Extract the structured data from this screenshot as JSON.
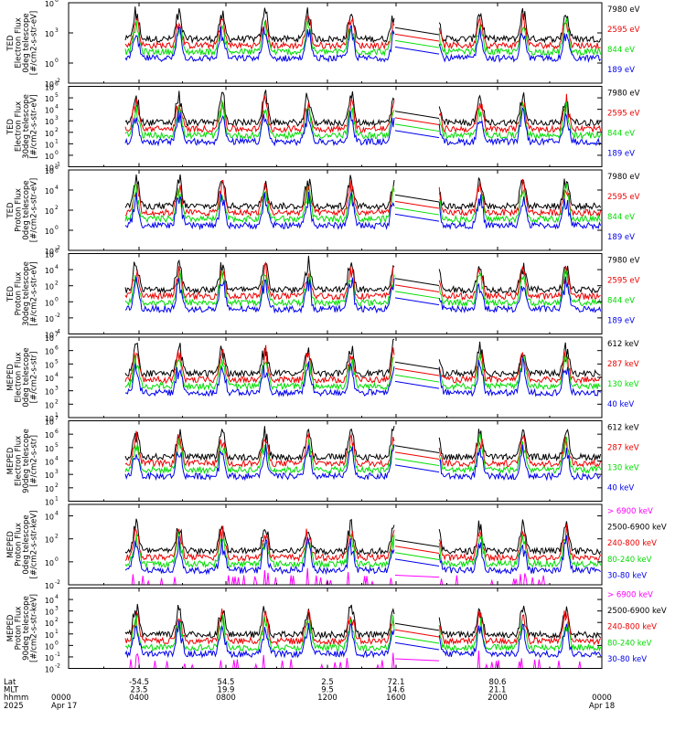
{
  "colors": {
    "black": "#000000",
    "red": "#ee0000",
    "green": "#00dd00",
    "blue": "#0000ee",
    "magenta": "#ff00ff"
  },
  "xaxis": {
    "rows": [
      {
        "label": "Lat",
        "ticks": [
          "",
          "-54.5",
          "54.5",
          "2.5",
          "72.1",
          "80.6",
          ""
        ]
      },
      {
        "label": "MLT",
        "ticks": [
          "",
          "23.5",
          "19.9",
          "9.5",
          "14.6",
          "21.1",
          ""
        ]
      },
      {
        "label": "hhmm",
        "ticks": [
          "0000",
          "0400",
          "0800",
          "1200",
          "1600",
          "2000",
          "0000"
        ]
      },
      {
        "label": "2025",
        "ticks": [
          "Apr 17",
          "",
          "",
          "",
          "",
          "",
          "Apr 18"
        ]
      }
    ]
  },
  "chart_data": [
    {
      "type": "line",
      "ylabel_lines": [
        "TED",
        "Electron Flux",
        "0deg telescope",
        "[#/cm2-s-str-eV]"
      ],
      "ylog_range": [
        -2,
        6
      ],
      "yticks_exp": [
        -2,
        0,
        3,
        6
      ],
      "ytick_labels": [
        "10",
        "10",
        "10",
        "10"
      ],
      "ytick_sup": [
        "-2",
        "0",
        "3",
        "6"
      ],
      "series": [
        {
          "name": "7980 eV",
          "color": "black"
        },
        {
          "name": "2595 eV",
          "color": "red"
        },
        {
          "name": "844 eV",
          "color": "green"
        },
        {
          "name": "189 eV",
          "color": "blue"
        }
      ],
      "legend": "right"
    },
    {
      "type": "line",
      "ylabel_lines": [
        "TED",
        "Electron Flux",
        "30deg telescope",
        "[#/cm2-s-str-eV]"
      ],
      "ylog_range": [
        -1,
        6
      ],
      "yticks_exp": [
        -1,
        0,
        1,
        2,
        3,
        4,
        5,
        6
      ],
      "ytick_labels": [
        "10",
        "10",
        "10",
        "10",
        "10",
        "10",
        "10",
        "10"
      ],
      "ytick_sup": [
        "-1",
        "0",
        "1",
        "2",
        "3",
        "4",
        "5",
        "6"
      ],
      "series": [
        {
          "name": "7980 eV",
          "color": "black"
        },
        {
          "name": "2595 eV",
          "color": "red"
        },
        {
          "name": "844 eV",
          "color": "green"
        },
        {
          "name": "189 eV",
          "color": "blue"
        }
      ],
      "legend": "right"
    },
    {
      "type": "line",
      "ylabel_lines": [
        "TED",
        "Proton Flux",
        "0deg telescope",
        "[#/cm2-s-str-eV]"
      ],
      "ylog_range": [
        -2,
        6
      ],
      "yticks_exp": [
        -2,
        0,
        2,
        4,
        6
      ],
      "ytick_labels": [
        "10",
        "10",
        "10",
        "10",
        "10"
      ],
      "ytick_sup": [
        "-2",
        "0",
        "2",
        "4",
        "6"
      ],
      "series": [
        {
          "name": "7980 eV",
          "color": "black"
        },
        {
          "name": "2595 eV",
          "color": "red"
        },
        {
          "name": "844 eV",
          "color": "green"
        },
        {
          "name": "189 eV",
          "color": "blue"
        }
      ],
      "legend": "right"
    },
    {
      "type": "line",
      "ylabel_lines": [
        "TED",
        "Proton Flux",
        "30deg telescope",
        "[#/cm2-s-str-eV]"
      ],
      "ylog_range": [
        -4,
        6
      ],
      "yticks_exp": [
        -4,
        -2,
        0,
        2,
        4,
        6
      ],
      "ytick_labels": [
        "10",
        "10",
        "10",
        "10",
        "10",
        "10"
      ],
      "ytick_sup": [
        "-4",
        "-2",
        "0",
        "2",
        "4",
        "6"
      ],
      "series": [
        {
          "name": "7980 eV",
          "color": "black"
        },
        {
          "name": "2595 eV",
          "color": "red"
        },
        {
          "name": "844 eV",
          "color": "green"
        },
        {
          "name": "189 eV",
          "color": "blue"
        }
      ],
      "legend": "right"
    },
    {
      "type": "line",
      "ylabel_lines": [
        "MEPED",
        "Electron Flux",
        "0deg telescope",
        "[#/cm2-s-str]"
      ],
      "ylog_range": [
        1,
        7
      ],
      "yticks_exp": [
        1,
        2,
        3,
        4,
        5,
        6,
        7
      ],
      "ytick_labels": [
        "10",
        "10",
        "10",
        "10",
        "10",
        "10",
        "10"
      ],
      "ytick_sup": [
        "1",
        "2",
        "3",
        "4",
        "5",
        "6",
        "7"
      ],
      "series": [
        {
          "name": "612 keV",
          "color": "black"
        },
        {
          "name": "287 keV",
          "color": "red"
        },
        {
          "name": "130 keV",
          "color": "green"
        },
        {
          "name": "40 keV",
          "color": "blue"
        }
      ],
      "legend": "right"
    },
    {
      "type": "line",
      "ylabel_lines": [
        "MEPED",
        "Electron Flux",
        "90deg telescope",
        "[#/cm2-s-str]"
      ],
      "ylog_range": [
        1,
        7
      ],
      "yticks_exp": [
        1,
        2,
        3,
        4,
        5,
        6,
        7
      ],
      "ytick_labels": [
        "10",
        "10",
        "10",
        "10",
        "10",
        "10",
        "10"
      ],
      "ytick_sup": [
        "1",
        "2",
        "3",
        "4",
        "5",
        "6",
        "7"
      ],
      "series": [
        {
          "name": "612 keV",
          "color": "black"
        },
        {
          "name": "287 keV",
          "color": "red"
        },
        {
          "name": "130 keV",
          "color": "green"
        },
        {
          "name": "40 keV",
          "color": "blue"
        }
      ],
      "legend": "right"
    },
    {
      "type": "line",
      "ylabel_lines": [
        "MEPED",
        "Proton Flux",
        "0deg telescope",
        "[#/cm2-s-str-keV]"
      ],
      "ylog_range": [
        -2,
        5
      ],
      "yticks_exp": [
        -2,
        0,
        2,
        4
      ],
      "ytick_labels": [
        "10",
        "10",
        "10",
        "10"
      ],
      "ytick_sup": [
        "-2",
        "0",
        "2",
        "4"
      ],
      "series": [
        {
          "name": "> 6900 keV",
          "color": "magenta"
        },
        {
          "name": "2500-6900 keV",
          "color": "black"
        },
        {
          "name": "240-800 keV",
          "color": "red"
        },
        {
          "name": "80-240 keV",
          "color": "green"
        },
        {
          "name": "30-80 keV",
          "color": "blue"
        }
      ],
      "legend": "right"
    },
    {
      "type": "line",
      "ylabel_lines": [
        "MEPED",
        "Proton Flux",
        "90deg telescope",
        "[#/cm2-s-str-keV]"
      ],
      "ylog_range": [
        -2,
        5
      ],
      "yticks_exp": [
        -2,
        -1,
        0,
        1,
        2,
        3,
        4
      ],
      "ytick_labels": [
        "10",
        "10",
        "10",
        "10",
        "10",
        "10",
        "10"
      ],
      "ytick_sup": [
        "-2",
        "-1",
        "0",
        "1",
        "2",
        "3",
        "4"
      ],
      "series": [
        {
          "name": "> 6900 keV",
          "color": "magenta"
        },
        {
          "name": "2500-6900 keV",
          "color": "black"
        },
        {
          "name": "240-800 keV",
          "color": "red"
        },
        {
          "name": "80-240 keV",
          "color": "green"
        },
        {
          "name": "30-80 keV",
          "color": "blue"
        }
      ],
      "legend": "right"
    }
  ]
}
